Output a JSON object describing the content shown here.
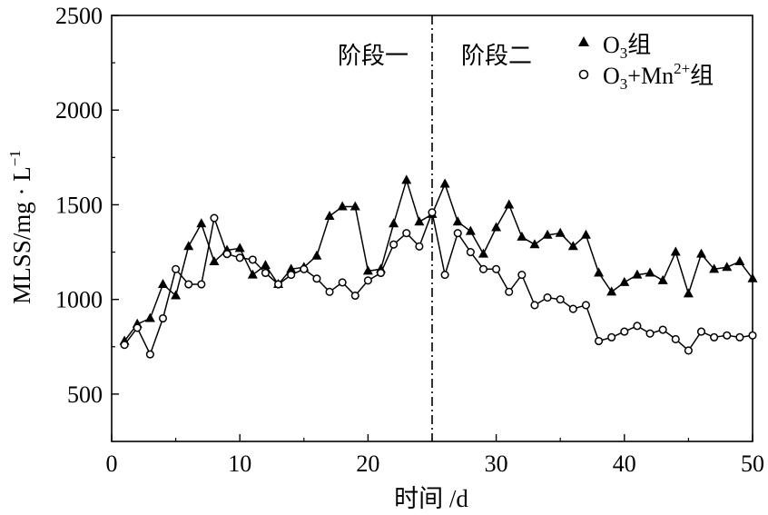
{
  "chart_data": {
    "type": "line",
    "xlabel": "时间 /d",
    "ylabel": "MLSS/mg · L",
    "ylabel_sup": "−1",
    "xlim": [
      0,
      50
    ],
    "ylim": [
      250,
      2500
    ],
    "x_ticks": [
      0,
      10,
      20,
      30,
      40,
      50
    ],
    "y_ticks": [
      500,
      1000,
      1500,
      2000,
      2500
    ],
    "grid": false,
    "legend_position": "top-right",
    "stage_divider_x": 25,
    "stage_labels": [
      "阶段一",
      "阶段二"
    ],
    "legend": [
      {
        "marker": "filled-triangle",
        "base": "O",
        "sub": "3",
        "sup": "",
        "suffix": "组"
      },
      {
        "marker": "open-circle",
        "base": "O",
        "sub": "3",
        "mid": "+Mn",
        "sup": "2+",
        "suffix": "组"
      }
    ],
    "series": [
      {
        "name": "O3组",
        "marker": "filled-triangle",
        "x": [
          1,
          2,
          3,
          4,
          5,
          6,
          7,
          8,
          9,
          10,
          11,
          12,
          13,
          14,
          15,
          16,
          17,
          18,
          19,
          20,
          21,
          22,
          23,
          24,
          25,
          26,
          27,
          28,
          29,
          30,
          31,
          32,
          33,
          34,
          35,
          36,
          37,
          38,
          39,
          40,
          41,
          42,
          43,
          44,
          45,
          46,
          47,
          48,
          49,
          50
        ],
        "y": [
          780,
          870,
          900,
          1080,
          1020,
          1280,
          1400,
          1200,
          1260,
          1270,
          1130,
          1180,
          1080,
          1160,
          1170,
          1230,
          1440,
          1490,
          1490,
          1150,
          1160,
          1400,
          1630,
          1410,
          1450,
          1610,
          1410,
          1360,
          1240,
          1380,
          1500,
          1330,
          1290,
          1340,
          1350,
          1280,
          1340,
          1140,
          1040,
          1090,
          1130,
          1140,
          1100,
          1250,
          1030,
          1240,
          1160,
          1170,
          1200,
          1110
        ]
      },
      {
        "name": "O3+Mn2+组",
        "marker": "open-circle",
        "x": [
          1,
          2,
          3,
          4,
          5,
          6,
          7,
          8,
          9,
          10,
          11,
          12,
          13,
          14,
          15,
          16,
          17,
          18,
          19,
          20,
          21,
          22,
          23,
          24,
          25,
          26,
          27,
          28,
          29,
          30,
          31,
          32,
          33,
          34,
          35,
          36,
          37,
          38,
          39,
          40,
          41,
          42,
          43,
          44,
          45,
          46,
          47,
          48,
          49,
          50
        ],
        "y": [
          760,
          850,
          710,
          900,
          1160,
          1080,
          1080,
          1430,
          1240,
          1220,
          1210,
          1140,
          1080,
          1130,
          1160,
          1110,
          1040,
          1090,
          1020,
          1100,
          1140,
          1290,
          1350,
          1280,
          1460,
          1130,
          1350,
          1250,
          1160,
          1160,
          1040,
          1130,
          970,
          1010,
          1000,
          950,
          970,
          780,
          800,
          830,
          860,
          820,
          840,
          790,
          730,
          830,
          800,
          810,
          800,
          810
        ]
      }
    ]
  }
}
